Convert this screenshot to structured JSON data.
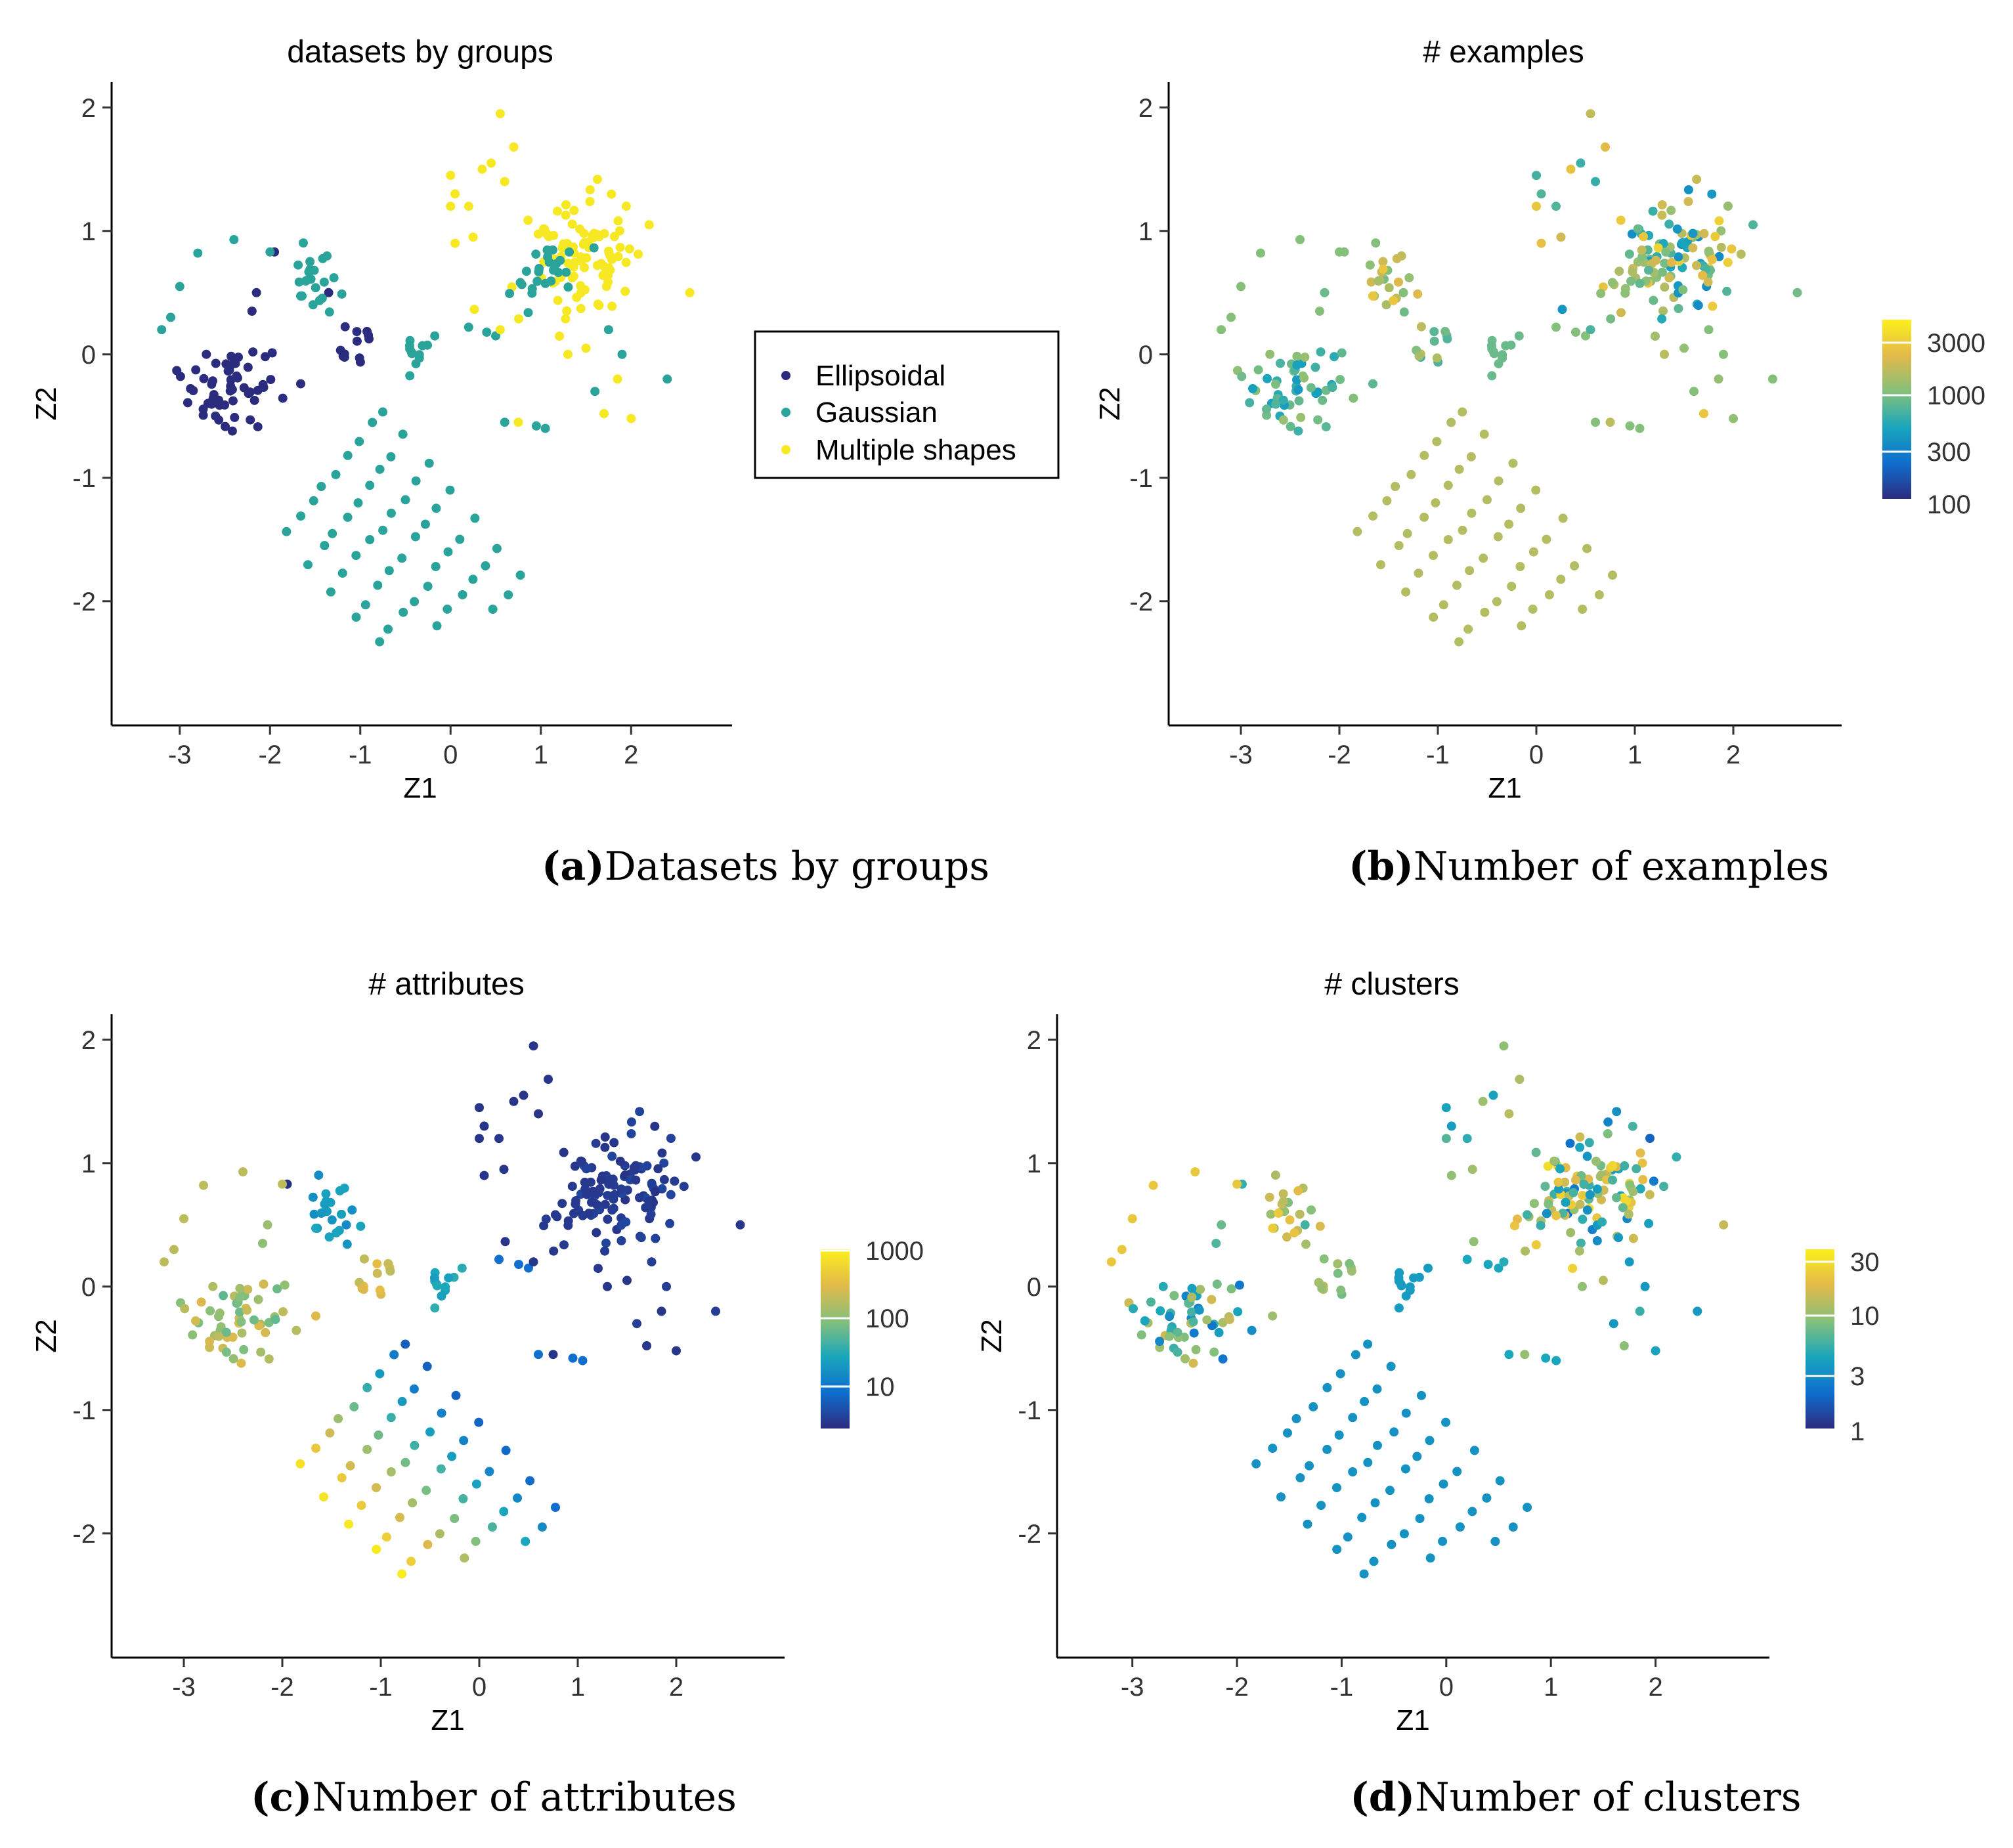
{
  "palette": {
    "viridis": [
      "#2c2c7e",
      "#0f6ece",
      "#1aa6bc",
      "#85c07a",
      "#e3b94a",
      "#fbf01c"
    ],
    "groups": {
      "Ellipsoidal": "#2c2c7e",
      "Gaussian": "#2aa39a",
      "Multiple shapes": "#f6e823"
    }
  },
  "legend": {
    "items": [
      "Ellipsoidal",
      "Gaussian",
      "Multiple shapes"
    ]
  },
  "chart_data": [
    {
      "id": "a",
      "type": "scatter",
      "title": "datasets by groups",
      "xlabel": "Z1",
      "ylabel": "Z2",
      "xlim": [
        -3.5,
        2.9
      ],
      "ylim": [
        -2.9,
        2.1
      ],
      "xticks": [
        -3,
        -2,
        -1,
        0,
        1,
        2
      ],
      "yticks": [
        -2,
        -1,
        0,
        1,
        2
      ],
      "color_mode": "group",
      "caption_letter": "(a)",
      "caption_text": "Datasets by groups"
    },
    {
      "id": "b",
      "type": "scatter",
      "title": "# examples",
      "xlabel": "Z1",
      "ylabel": "Z2",
      "xlim": [
        -3.5,
        2.9
      ],
      "ylim": [
        -2.9,
        2.1
      ],
      "xticks": [
        -3,
        -2,
        -1,
        0,
        1,
        2
      ],
      "yticks": [
        -2,
        -1,
        0,
        1,
        2
      ],
      "color_mode": "examples",
      "colorbar": {
        "ticks": [
          "3000",
          "1000",
          "300",
          "100"
        ]
      },
      "caption_letter": "(b)",
      "caption_text": "Number of examples"
    },
    {
      "id": "c",
      "type": "scatter",
      "title": "# attributes",
      "xlabel": "Z1",
      "ylabel": "Z2",
      "xlim": [
        -3.5,
        2.9
      ],
      "ylim": [
        -2.9,
        2.1
      ],
      "xticks": [
        -3,
        -2,
        -1,
        0,
        1,
        2
      ],
      "yticks": [
        -2,
        -1,
        0,
        1,
        2
      ],
      "color_mode": "attributes",
      "colorbar": {
        "ticks": [
          "1000",
          "100",
          "10"
        ]
      },
      "caption_letter": "(c)",
      "caption_text": "Number of attributes"
    },
    {
      "id": "d",
      "type": "scatter",
      "title": "# clusters",
      "xlabel": "Z1",
      "ylabel": "Z2",
      "xlim": [
        -3.5,
        2.9
      ],
      "ylim": [
        -2.9,
        2.1
      ],
      "xticks": [
        -3,
        -2,
        -1,
        0,
        1,
        2
      ],
      "yticks": [
        -2,
        -1,
        0,
        1,
        2
      ],
      "color_mode": "clusters",
      "colorbar": {
        "ticks": [
          "30",
          "10",
          "3",
          "1"
        ]
      },
      "caption_letter": "(d)",
      "caption_text": "Number of clusters"
    }
  ]
}
